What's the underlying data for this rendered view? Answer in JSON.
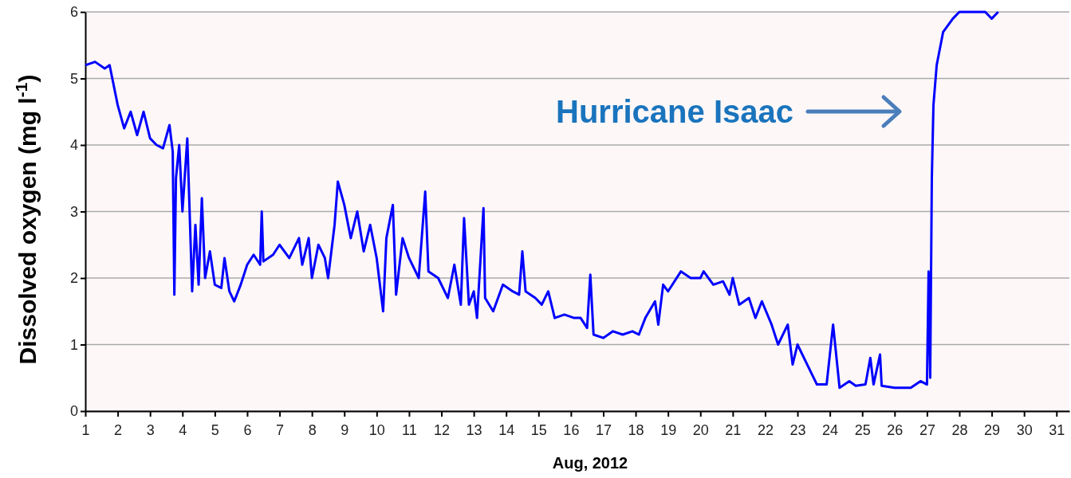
{
  "chart_data": {
    "type": "line",
    "xlabel": "Aug, 2012",
    "ylabel": "Dissolved oxygen (mg l$^{-1}$)",
    "xlim": [
      1,
      31.4
    ],
    "ylim": [
      0,
      6
    ],
    "xticks": [
      1,
      2,
      3,
      4,
      5,
      6,
      7,
      8,
      9,
      10,
      11,
      12,
      13,
      14,
      15,
      16,
      17,
      18,
      19,
      20,
      21,
      22,
      23,
      24,
      25,
      26,
      27,
      28,
      29,
      30,
      31
    ],
    "yticks": [
      0,
      1,
      2,
      3,
      4,
      5,
      6
    ],
    "grid": "y",
    "marker": "none",
    "line_style": "solid",
    "annotations": [
      "Hurricane Isaac"
    ],
    "series": [
      {
        "color": "#0000ff",
        "x": [
          1,
          1.3,
          1.6,
          1.75,
          2,
          2.2,
          2.4,
          2.6,
          2.8,
          3,
          3.2,
          3.4,
          3.6,
          3.65,
          3.7,
          3.75,
          3.8,
          3.9,
          4,
          4.15,
          4.3,
          4.4,
          4.5,
          4.6,
          4.7,
          4.85,
          5,
          5.2,
          5.3,
          5.45,
          5.6,
          5.8,
          6,
          6.2,
          6.4,
          6.45,
          6.5,
          6.8,
          7,
          7.3,
          7.6,
          7.7,
          7.9,
          8,
          8.2,
          8.4,
          8.5,
          8.7,
          8.8,
          9,
          9.2,
          9.4,
          9.6,
          9.8,
          10,
          10.2,
          10.3,
          10.5,
          10.6,
          10.8,
          11,
          11.3,
          11.5,
          11.6,
          11.9,
          12.2,
          12.4,
          12.6,
          12.7,
          12.85,
          13,
          13.1,
          13.3,
          13.35,
          13.6,
          13.9,
          14.2,
          14.4,
          14.5,
          14.6,
          14.9,
          15.1,
          15.3,
          15.5,
          15.8,
          16.1,
          16.3,
          16.5,
          16.6,
          16.7,
          17,
          17.3,
          17.6,
          17.9,
          18.1,
          18.3,
          18.6,
          18.7,
          18.85,
          19,
          19.4,
          19.7,
          20,
          20.1,
          20.4,
          20.7,
          20.9,
          21,
          21.2,
          21.5,
          21.7,
          21.9,
          22.2,
          22.4,
          22.7,
          22.85,
          23,
          23.3,
          23.6,
          23.9,
          24.1,
          24.3,
          24.6,
          24.8,
          25.1,
          25.25,
          25.35,
          25.55,
          25.6,
          26,
          26.5,
          26.8,
          27,
          27.05,
          27.1,
          27.15,
          27.2,
          27.3,
          27.5,
          27.8,
          28,
          28.2,
          28.5,
          28.8,
          29,
          29.2
        ],
        "values": [
          5.2,
          5.25,
          5.15,
          5.2,
          4.6,
          4.25,
          4.5,
          4.15,
          4.5,
          4.1,
          4,
          3.95,
          4.3,
          4.1,
          3.9,
          1.75,
          3.5,
          4,
          3,
          4.1,
          1.8,
          2.8,
          1.9,
          3.2,
          2,
          2.4,
          1.9,
          1.85,
          2.3,
          1.8,
          1.65,
          1.9,
          2.2,
          2.35,
          2.2,
          3,
          2.25,
          2.35,
          2.5,
          2.3,
          2.6,
          2.2,
          2.6,
          2,
          2.5,
          2.3,
          2,
          2.8,
          3.45,
          3.1,
          2.6,
          3,
          2.4,
          2.8,
          2.3,
          1.5,
          2.6,
          3.1,
          1.75,
          2.6,
          2.3,
          2,
          3.3,
          2.1,
          2,
          1.7,
          2.2,
          1.6,
          2.9,
          1.6,
          1.8,
          1.4,
          3.05,
          1.7,
          1.5,
          1.9,
          1.8,
          1.75,
          2.4,
          1.8,
          1.7,
          1.6,
          1.8,
          1.4,
          1.45,
          1.4,
          1.4,
          1.25,
          2.05,
          1.15,
          1.1,
          1.2,
          1.15,
          1.2,
          1.15,
          1.4,
          1.65,
          1.3,
          1.9,
          1.8,
          2.1,
          2,
          2,
          2.1,
          1.9,
          1.95,
          1.75,
          2,
          1.6,
          1.7,
          1.4,
          1.65,
          1.3,
          1,
          1.3,
          0.7,
          1,
          0.7,
          0.4,
          0.4,
          1.3,
          0.35,
          0.45,
          0.38,
          0.4,
          0.8,
          0.4,
          0.85,
          0.38,
          0.35,
          0.35,
          0.45,
          0.4,
          2.1,
          0.5,
          3.5,
          4.6,
          5.2,
          5.7,
          5.9,
          6,
          6,
          6,
          6,
          5.9,
          6
        ]
      }
    ]
  }
}
